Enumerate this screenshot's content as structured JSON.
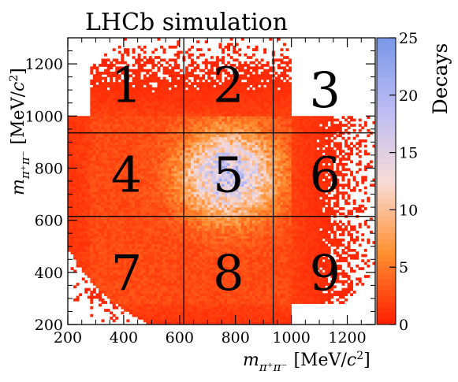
{
  "chart_data": {
    "type": "heatmap",
    "title": "LHCb simulation",
    "xlabel": {
      "symbol": "m",
      "subscript": "π⁺π⁻",
      "unit_open": "[MeV/",
      "unit_c": "c",
      "unit_sup": "2",
      "unit_close": "]"
    },
    "ylabel": {
      "symbol": "m",
      "subscript": "π⁺π⁻",
      "unit_open": "[MeV/",
      "unit_c": "c",
      "unit_sup": "2",
      "unit_close": "]"
    },
    "xlim": [
      200,
      1300
    ],
    "ylim": [
      200,
      1300
    ],
    "x_ticks": [
      "200",
      "400",
      "600",
      "800",
      "1000",
      "1200"
    ],
    "y_ticks": [
      "200",
      "400",
      "600",
      "800",
      "1000",
      "1200"
    ],
    "x_tick_values": [
      200,
      400,
      600,
      800,
      1000,
      1200
    ],
    "y_tick_values": [
      200,
      400,
      600,
      800,
      1000,
      1200
    ],
    "colorbar": {
      "label": "Decays",
      "range": [
        0,
        25
      ],
      "ticks": [
        "0",
        "5",
        "10",
        "15",
        "20",
        "25"
      ],
      "tick_values": [
        0,
        5,
        10,
        15,
        20,
        25
      ],
      "colors": [
        "#ff1c00",
        "#ff9030",
        "#f8dcd8",
        "#bcbcf4",
        "#7a98e8"
      ]
    },
    "boundaries": {
      "x": [
        615,
        935
      ],
      "y": [
        615,
        935
      ]
    },
    "regions": [
      {
        "label": "1",
        "x": 410,
        "y": 1120
      },
      {
        "label": "2",
        "x": 775,
        "y": 1120
      },
      {
        "label": "3",
        "x": 1120,
        "y": 1100
      },
      {
        "label": "4",
        "x": 410,
        "y": 775
      },
      {
        "label": "5",
        "x": 775,
        "y": 775
      },
      {
        "label": "6",
        "x": 1120,
        "y": 775
      },
      {
        "label": "7",
        "x": 410,
        "y": 400
      },
      {
        "label": "8",
        "x": 775,
        "y": 400
      },
      {
        "label": "9",
        "x": 1120,
        "y": 400
      }
    ],
    "distribution": {
      "peak_x": 775,
      "peak_y": 775,
      "peak_value": 18,
      "band_x_range": [
        280,
        1000
      ],
      "band_y_range": [
        280,
        1000
      ]
    }
  }
}
